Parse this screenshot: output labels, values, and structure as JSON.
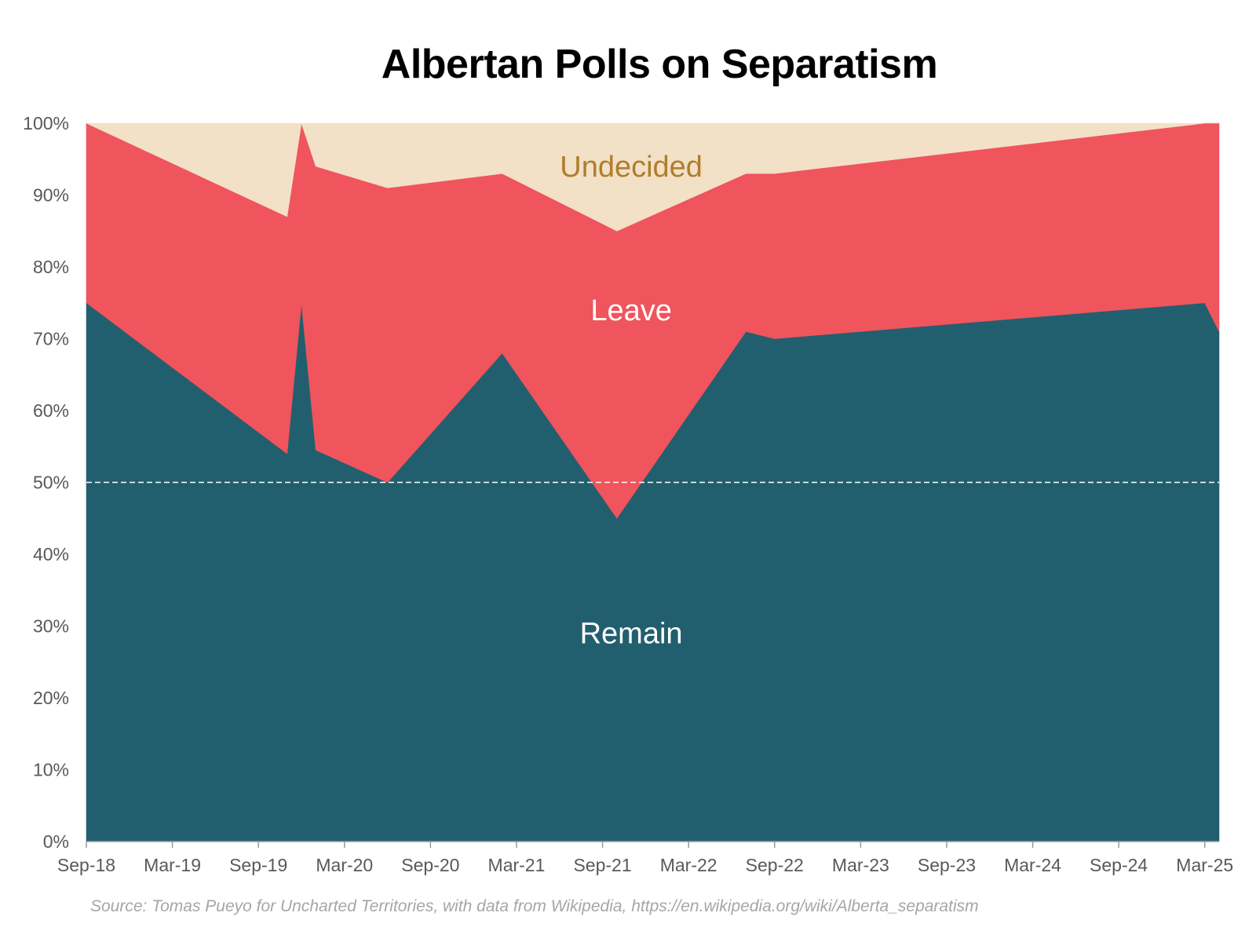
{
  "chart_data": {
    "type": "area",
    "stacked": true,
    "title": "Albertan Polls on Separatism",
    "source": "Source: Tomas Pueyo for Uncharted Territories, with data from Wikipedia, https://en.wikipedia.org/wiki/Alberta_separatism",
    "x_tick_labels": [
      "Sep-18",
      "Mar-19",
      "Sep-19",
      "Mar-20",
      "Sep-20",
      "Mar-21",
      "Sep-21",
      "Mar-22",
      "Sep-22",
      "Mar-23",
      "Sep-23",
      "Mar-24",
      "Sep-24",
      "Mar-25"
    ],
    "y_tick_labels": [
      "0%",
      "10%",
      "20%",
      "30%",
      "40%",
      "50%",
      "60%",
      "70%",
      "80%",
      "90%",
      "100%"
    ],
    "ylim": [
      0,
      100
    ],
    "x_start": "2018-09",
    "x_end": "2025-04",
    "reference_line": {
      "y": 50,
      "style": "dashed"
    },
    "x": [
      "2018-09",
      "2019-11",
      "2019-12",
      "2020-01",
      "2020-06",
      "2021-02",
      "2021-10",
      "2022-07",
      "2022-09",
      "2025-03",
      "2025-04"
    ],
    "series": [
      {
        "name": "Remain",
        "color": "#225f6e",
        "label_color": "#ffffff",
        "label_at": {
          "x": "2021-11",
          "y": 29
        },
        "values": [
          75,
          54,
          75,
          54.5,
          50,
          68,
          45,
          71,
          70,
          75,
          71
        ]
      },
      {
        "name": "Leave",
        "color": "#f0545c",
        "label_color": "#ffffff",
        "label_at": {
          "x": "2021-11",
          "y": 74
        },
        "values": [
          25,
          33,
          25,
          39.5,
          41,
          25,
          40,
          22,
          23,
          25,
          29
        ]
      },
      {
        "name": "Undecided",
        "color": "#f2e0c7",
        "label_color": "#b07d2b",
        "label_at": {
          "x": "2021-11",
          "y": 94
        },
        "values": [
          0,
          13,
          0,
          6,
          9,
          7,
          15,
          7,
          7,
          0,
          0
        ]
      }
    ]
  }
}
